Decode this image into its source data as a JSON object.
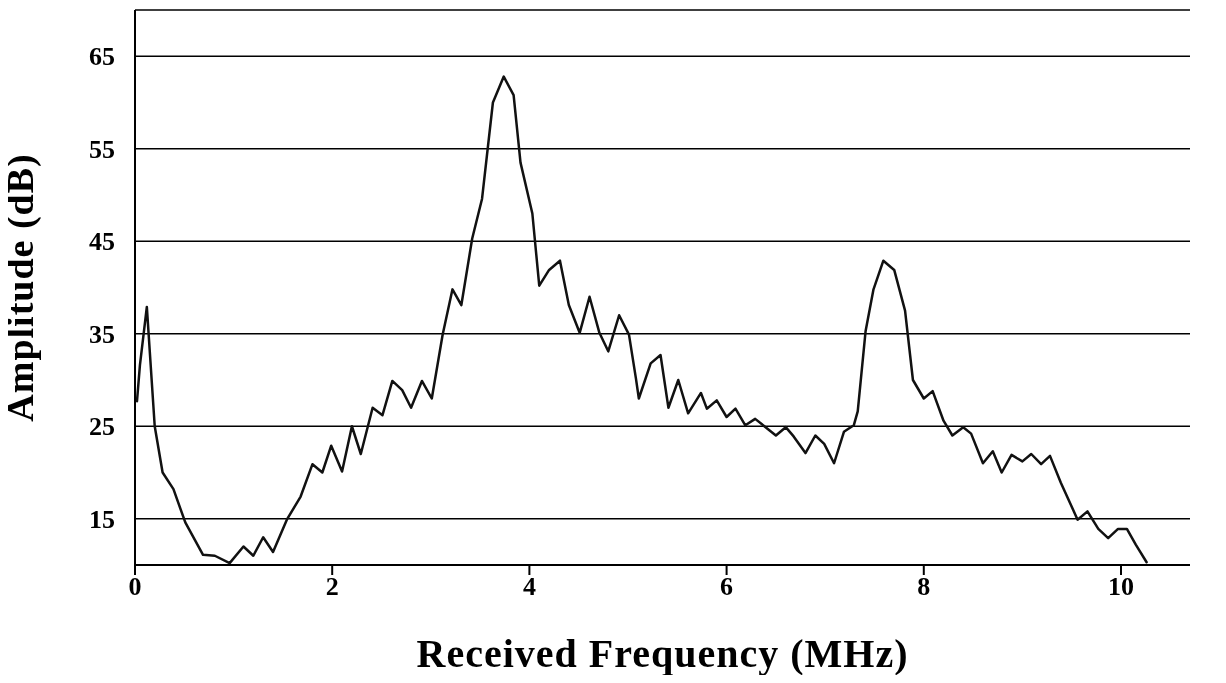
{
  "chart_data": {
    "type": "line",
    "xlabel": "Received Frequency (MHz)",
    "ylabel": "Amplitude (dB)",
    "xlim": [
      0,
      10.7
    ],
    "xticks": [
      0,
      2,
      4,
      6,
      8,
      10
    ],
    "ylim": [
      10,
      70
    ],
    "yticks": [
      15,
      25,
      35,
      45,
      55,
      65
    ],
    "grid": "y",
    "line_style": "solid",
    "marker": "none",
    "series": [
      {
        "color": "#111111",
        "x": [
          0.02,
          0.05,
          0.12,
          0.2,
          0.28,
          0.39,
          0.51,
          0.69,
          0.81,
          0.96,
          1.1,
          1.2,
          1.3,
          1.4,
          1.54,
          1.68,
          1.8,
          1.9,
          1.99,
          2.1,
          2.2,
          2.29,
          2.41,
          2.51,
          2.61,
          2.71,
          2.8,
          2.91,
          3.01,
          3.12,
          3.22,
          3.31,
          3.42,
          3.52,
          3.63,
          3.74,
          3.84,
          3.91,
          4.03,
          4.1,
          4.2,
          4.31,
          4.4,
          4.51,
          4.61,
          4.71,
          4.8,
          4.91,
          5.01,
          5.08,
          5.11,
          5.23,
          5.33,
          5.41,
          5.51,
          5.61,
          5.74,
          5.8,
          5.9,
          6.0,
          6.09,
          6.19,
          6.29,
          6.5,
          6.6,
          6.68,
          6.8,
          6.9,
          6.99,
          7.09,
          7.19,
          7.29,
          7.33,
          7.41,
          7.49,
          7.59,
          7.7,
          7.81,
          7.89,
          8.0,
          8.09,
          8.2,
          8.29,
          8.4,
          8.48,
          8.6,
          8.7,
          8.79,
          8.89,
          9.0,
          9.09,
          9.19,
          9.28,
          9.39,
          9.56,
          9.66,
          9.77,
          9.87,
          9.97,
          10.06,
          10.15,
          10.26
        ],
        "values": [
          27.7,
          31.6,
          37.9,
          25,
          20,
          18.2,
          14.6,
          11.1,
          11,
          10.2,
          12,
          11,
          13,
          11.4,
          14.9,
          17.4,
          20.9,
          20,
          22.9,
          20.1,
          25,
          22,
          27,
          26.2,
          29.9,
          28.9,
          27,
          29.9,
          28,
          34.9,
          39.8,
          38.1,
          45.3,
          49.6,
          60,
          62.8,
          60.8,
          53.5,
          48,
          40.2,
          41.9,
          42.9,
          38.1,
          35.1,
          39,
          35.1,
          33.1,
          37,
          34.9,
          30.2,
          28,
          31.8,
          32.7,
          27,
          30,
          26.4,
          28.6,
          26.9,
          27.8,
          26,
          26.9,
          25.1,
          25.8,
          24,
          24.9,
          23.9,
          22.1,
          24,
          23.1,
          21,
          24.4,
          25.1,
          26.6,
          35.3,
          39.8,
          42.9,
          41.9,
          37.5,
          30,
          28,
          28.8,
          25.6,
          24,
          24.9,
          24.2,
          21,
          22.3,
          20,
          21.9,
          21.2,
          22,
          20.9,
          21.8,
          18.9,
          14.9,
          15.8,
          13.9,
          12.9,
          13.9,
          13.9,
          12.2,
          10.3
        ]
      }
    ]
  }
}
